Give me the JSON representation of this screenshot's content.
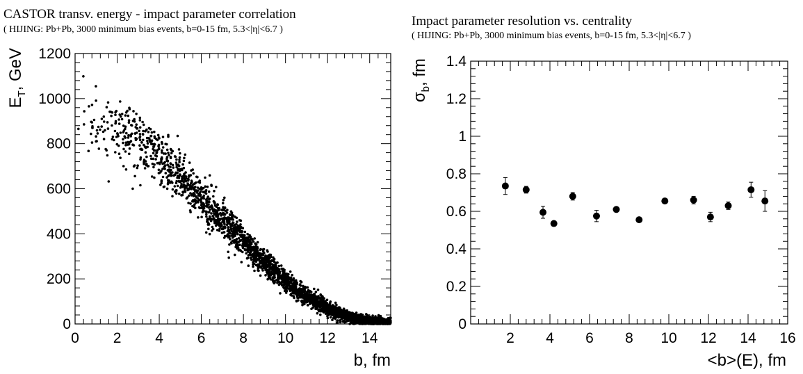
{
  "chart_data": [
    {
      "type": "scatter",
      "title": "CASTOR transv. energy - impact parameter correlation",
      "subtitle": "( HIJING: Pb+Pb, 3000 minimum bias events, b=0-15 fm, 5.3<|η|<6.7 )",
      "xlabel": "b, fm",
      "ylabel": "E_T, GeV",
      "xlim": [
        0,
        15
      ],
      "ylim": [
        0,
        1200
      ],
      "x_ticks": [
        0,
        2,
        4,
        6,
        8,
        10,
        12,
        14
      ],
      "y_ticks": [
        0,
        200,
        400,
        600,
        800,
        1000,
        1200
      ],
      "grid": false,
      "trend": {
        "x": [
          0,
          1,
          2,
          3,
          4,
          5,
          6,
          7,
          8,
          9,
          10,
          11,
          12,
          13,
          14,
          15
        ],
        "y": [
          900,
          900,
          870,
          810,
          740,
          650,
          550,
          460,
          360,
          270,
          190,
          120,
          70,
          30,
          10,
          5
        ]
      },
      "n_points": 3000
    },
    {
      "type": "scatter",
      "title": "Impact parameter resolution vs. centrality",
      "subtitle": "( HIJING: Pb+Pb, 3000 minimum bias events, b=0-15 fm, 5.3<|η|<6.7 )",
      "xlabel": "<b>(E), fm",
      "ylabel": "σ_b, fm",
      "xlim": [
        0,
        16
      ],
      "ylim": [
        0,
        1.4
      ],
      "x_ticks": [
        2,
        4,
        6,
        8,
        10,
        12,
        14,
        16
      ],
      "y_ticks": [
        0,
        0.2,
        0.4,
        0.6,
        0.8,
        1,
        1.2,
        1.4
      ],
      "grid": false,
      "x": [
        1.75,
        2.8,
        3.65,
        4.2,
        5.15,
        6.35,
        7.35,
        8.5,
        9.8,
        11.25,
        12.1,
        13.0,
        14.15,
        14.85
      ],
      "y": [
        0.735,
        0.715,
        0.595,
        0.535,
        0.68,
        0.575,
        0.61,
        0.555,
        0.655,
        0.66,
        0.57,
        0.63,
        0.715,
        0.655
      ],
      "err": [
        0.045,
        0.018,
        0.032,
        0.0,
        0.02,
        0.03,
        0.0,
        0.0,
        0.0,
        0.02,
        0.025,
        0.02,
        0.04,
        0.055
      ]
    }
  ]
}
